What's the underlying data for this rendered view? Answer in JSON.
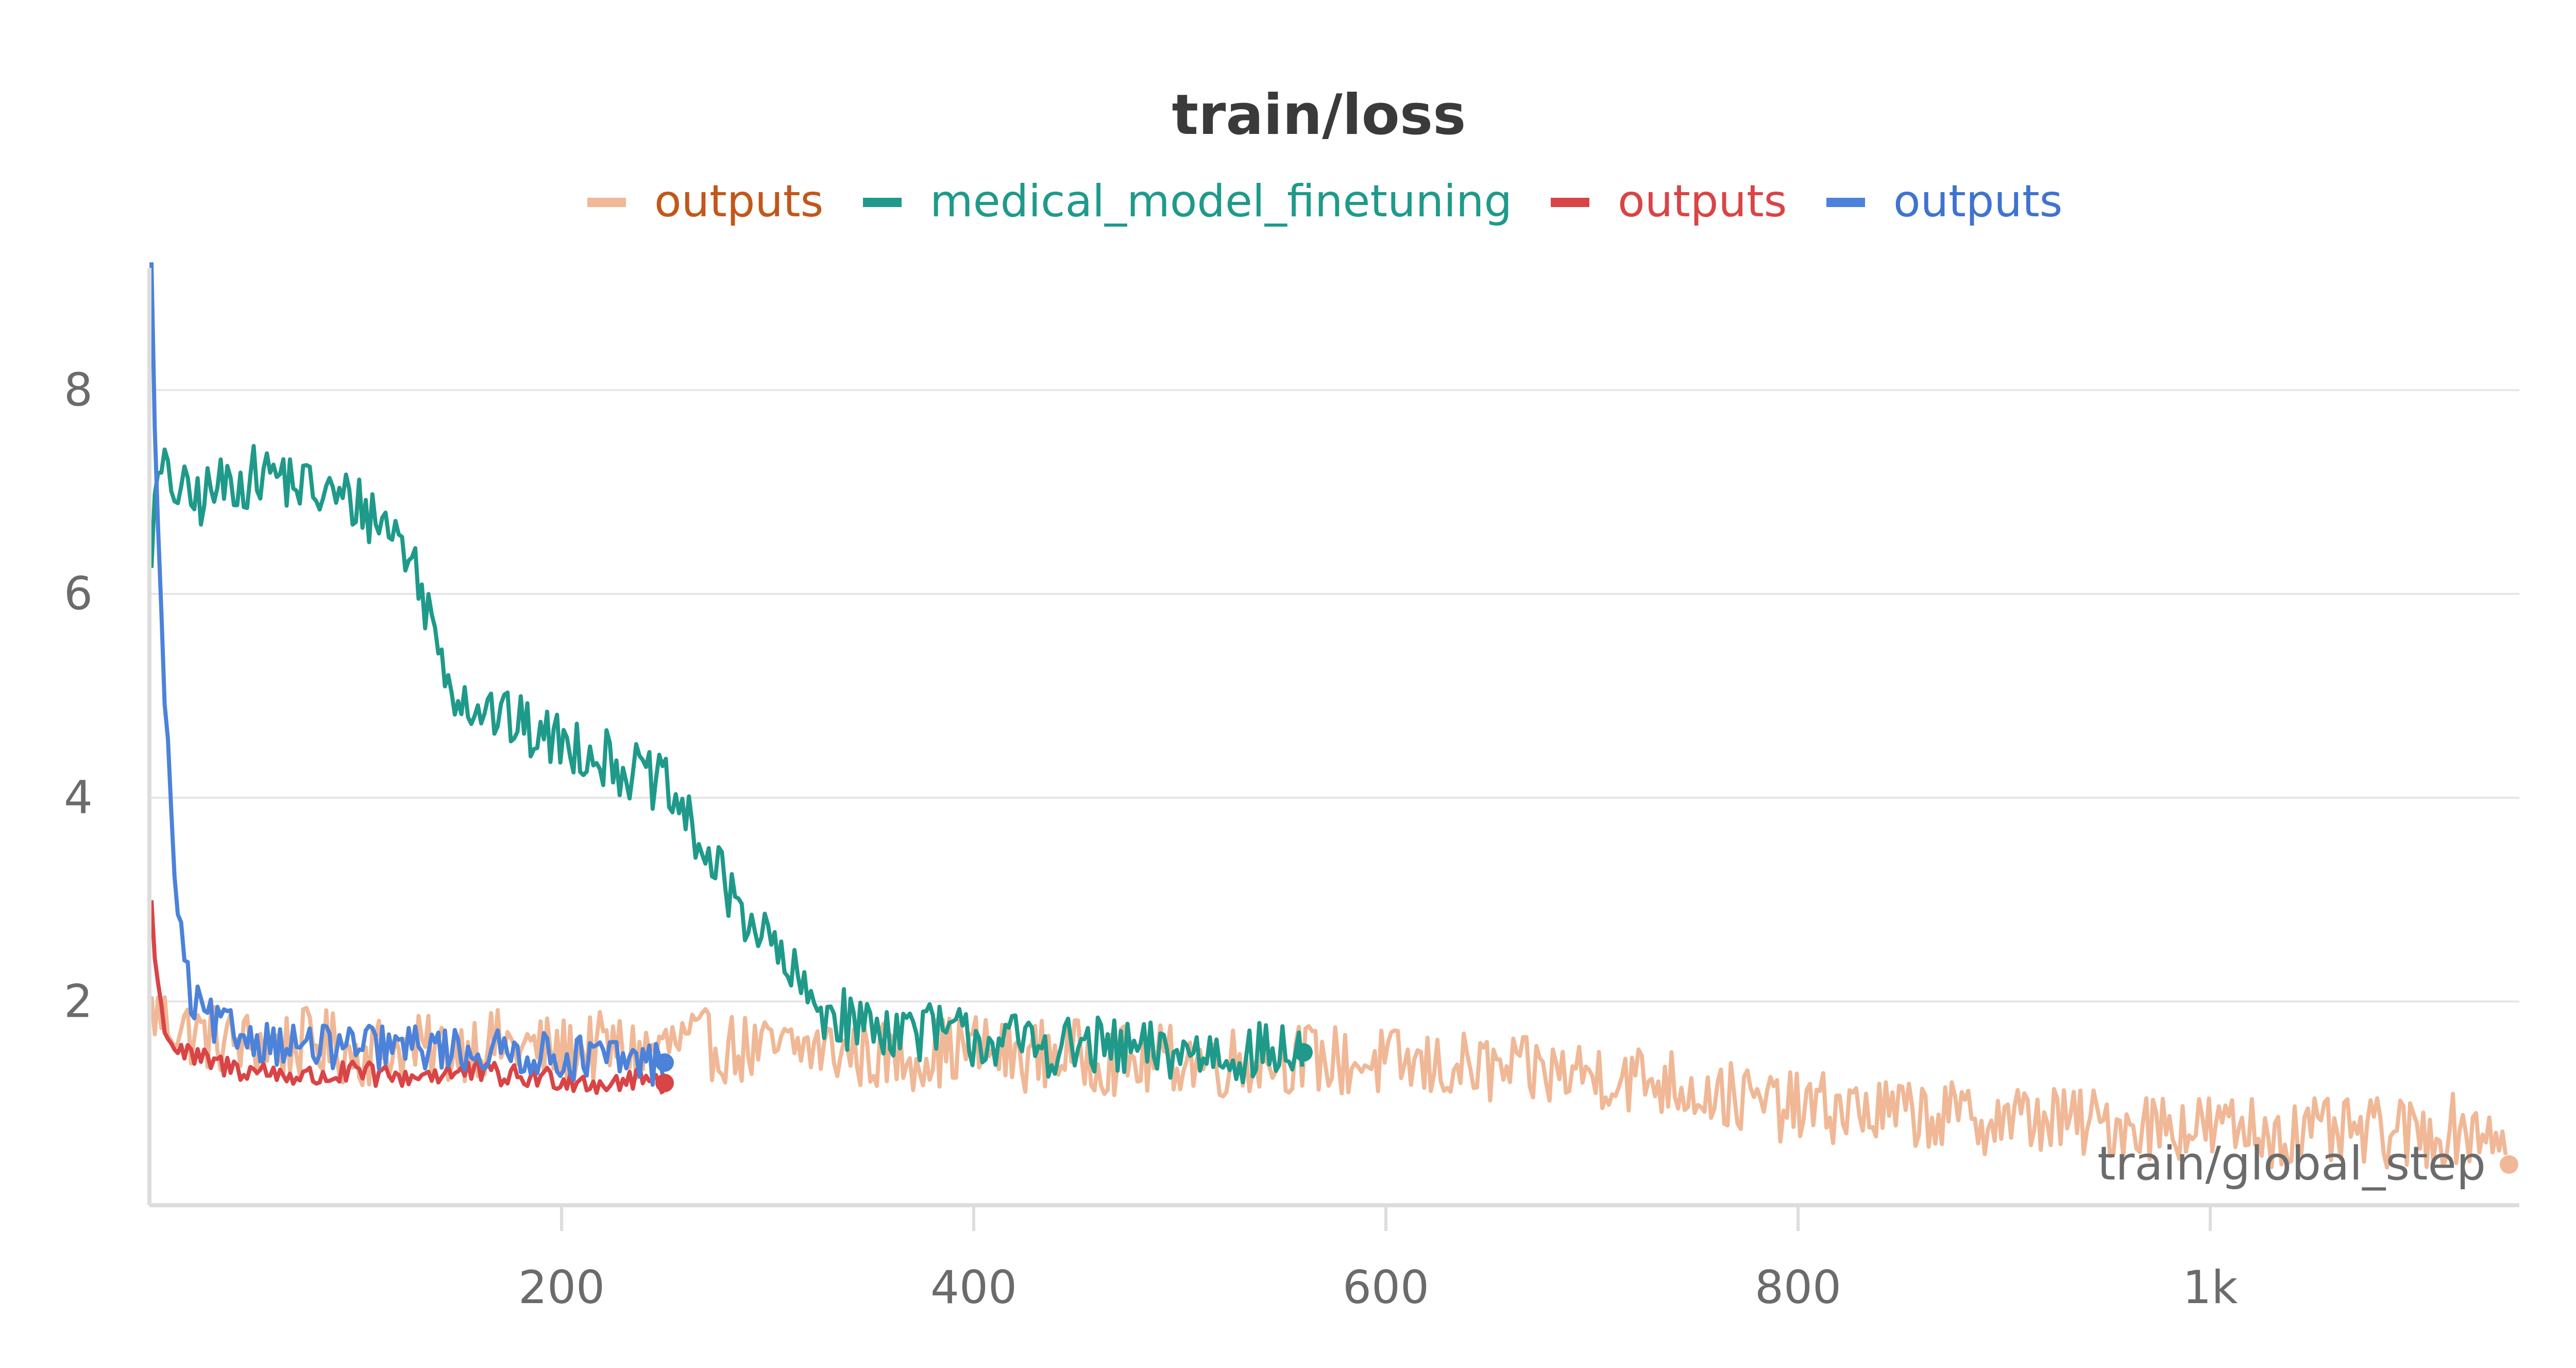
{
  "chart_data": {
    "type": "line",
    "title": "train/loss",
    "xlabel": "train/global_step",
    "ylabel": "",
    "xlim": [
      0,
      1150
    ],
    "ylim": [
      0.0,
      9.2
    ],
    "grid": true,
    "legend_position": "top-center",
    "x_ticks": [
      {
        "value": 200,
        "label": "200"
      },
      {
        "value": 400,
        "label": "400"
      },
      {
        "value": 600,
        "label": "600"
      },
      {
        "value": 800,
        "label": "800"
      },
      {
        "value": 1000,
        "label": "1k"
      }
    ],
    "y_ticks": [
      {
        "value": 2,
        "label": "2"
      },
      {
        "value": 4,
        "label": "4"
      },
      {
        "value": 6,
        "label": "6"
      },
      {
        "value": 8,
        "label": "8"
      }
    ],
    "series": [
      {
        "name": "outputs",
        "color": "#f0b896",
        "text_color": "#c2571a",
        "points": [
          [
            1,
            1.9
          ],
          [
            10,
            1.8
          ],
          [
            20,
            1.7
          ],
          [
            40,
            1.6
          ],
          [
            60,
            1.55
          ],
          [
            80,
            1.6
          ],
          [
            100,
            1.5
          ],
          [
            120,
            1.55
          ],
          [
            140,
            1.5
          ],
          [
            160,
            1.6
          ],
          [
            180,
            1.55
          ],
          [
            200,
            1.5
          ],
          [
            220,
            1.55
          ],
          [
            240,
            1.5
          ],
          [
            260,
            1.6
          ],
          [
            280,
            1.55
          ],
          [
            300,
            1.5
          ],
          [
            320,
            1.55
          ],
          [
            340,
            1.5
          ],
          [
            360,
            1.45
          ],
          [
            380,
            1.5
          ],
          [
            400,
            1.55
          ],
          [
            420,
            1.45
          ],
          [
            440,
            1.5
          ],
          [
            460,
            1.45
          ],
          [
            480,
            1.4
          ],
          [
            500,
            1.45
          ],
          [
            520,
            1.4
          ],
          [
            540,
            1.45
          ],
          [
            560,
            1.45
          ],
          [
            580,
            1.4
          ],
          [
            600,
            1.4
          ],
          [
            620,
            1.35
          ],
          [
            640,
            1.35
          ],
          [
            660,
            1.3
          ],
          [
            680,
            1.3
          ],
          [
            700,
            1.3
          ],
          [
            720,
            1.25
          ],
          [
            740,
            1.2
          ],
          [
            760,
            1.1
          ],
          [
            780,
            1.0
          ],
          [
            800,
            0.95
          ],
          [
            820,
            0.95
          ],
          [
            840,
            0.9
          ],
          [
            860,
            0.9
          ],
          [
            880,
            0.85
          ],
          [
            900,
            0.85
          ],
          [
            920,
            0.85
          ],
          [
            940,
            0.8
          ],
          [
            960,
            0.8
          ],
          [
            980,
            0.8
          ],
          [
            1000,
            0.75
          ],
          [
            1020,
            0.75
          ],
          [
            1040,
            0.7
          ],
          [
            1060,
            0.7
          ],
          [
            1080,
            0.7
          ],
          [
            1100,
            0.7
          ],
          [
            1120,
            0.75
          ],
          [
            1140,
            0.75
          ],
          [
            1145,
            0.4
          ]
        ],
        "noise": 0.35
      },
      {
        "name": "medical_model_finetuning",
        "color": "#1f9a8a",
        "text_color": "#1f9a8a",
        "points": [
          [
            1,
            6.5
          ],
          [
            5,
            7.2
          ],
          [
            20,
            6.9
          ],
          [
            40,
            7.1
          ],
          [
            60,
            7.2
          ],
          [
            80,
            7.0
          ],
          [
            100,
            6.9
          ],
          [
            120,
            6.6
          ],
          [
            130,
            6.2
          ],
          [
            140,
            5.5
          ],
          [
            150,
            5.0
          ],
          [
            170,
            4.8
          ],
          [
            190,
            4.6
          ],
          [
            210,
            4.5
          ],
          [
            230,
            4.3
          ],
          [
            250,
            4.1
          ],
          [
            260,
            3.8
          ],
          [
            280,
            3.1
          ],
          [
            300,
            2.6
          ],
          [
            320,
            2.0
          ],
          [
            340,
            1.8
          ],
          [
            360,
            1.75
          ],
          [
            380,
            1.7
          ],
          [
            400,
            1.65
          ],
          [
            420,
            1.6
          ],
          [
            440,
            1.55
          ],
          [
            460,
            1.55
          ],
          [
            480,
            1.5
          ],
          [
            500,
            1.5
          ],
          [
            520,
            1.5
          ],
          [
            540,
            1.5
          ],
          [
            560,
            1.5
          ]
        ],
        "noise": 0.3
      },
      {
        "name": "outputs",
        "color": "#d94446",
        "text_color": "#d94446",
        "points": [
          [
            1,
            3.0
          ],
          [
            3,
            2.3
          ],
          [
            6,
            1.9
          ],
          [
            10,
            1.6
          ],
          [
            20,
            1.45
          ],
          [
            40,
            1.35
          ],
          [
            60,
            1.3
          ],
          [
            80,
            1.25
          ],
          [
            100,
            1.3
          ],
          [
            120,
            1.25
          ],
          [
            140,
            1.3
          ],
          [
            160,
            1.3
          ],
          [
            180,
            1.25
          ],
          [
            200,
            1.25
          ],
          [
            220,
            1.2
          ],
          [
            240,
            1.25
          ],
          [
            250,
            1.2
          ]
        ],
        "noise": 0.12
      },
      {
        "name": "outputs",
        "color": "#4c82da",
        "text_color": "#3f73cf",
        "points": [
          [
            1,
            9.1
          ],
          [
            3,
            7.5
          ],
          [
            5,
            6.0
          ],
          [
            8,
            4.8
          ],
          [
            12,
            3.3
          ],
          [
            16,
            2.5
          ],
          [
            20,
            2.0
          ],
          [
            30,
            1.8
          ],
          [
            40,
            1.7
          ],
          [
            60,
            1.6
          ],
          [
            80,
            1.55
          ],
          [
            100,
            1.55
          ],
          [
            120,
            1.55
          ],
          [
            140,
            1.55
          ],
          [
            160,
            1.5
          ],
          [
            180,
            1.5
          ],
          [
            200,
            1.45
          ],
          [
            220,
            1.45
          ],
          [
            240,
            1.4
          ],
          [
            250,
            1.4
          ]
        ],
        "noise": 0.22
      }
    ]
  }
}
